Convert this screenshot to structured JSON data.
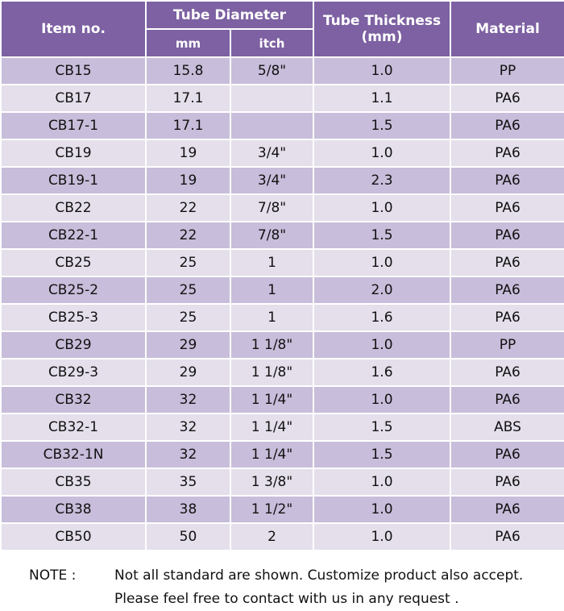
{
  "table": {
    "header": {
      "item": "Item no.",
      "diameter": "Tube Diameter",
      "mm": "mm",
      "inch": "itch",
      "thickness": [
        "Tube Thickness",
        "(mm)"
      ],
      "material": "Material"
    },
    "rows": [
      [
        "CB15",
        "15.8",
        "5/8\"",
        "1.0",
        "PP"
      ],
      [
        "CB17",
        "17.1",
        null,
        "1.1",
        "PA6"
      ],
      [
        "CB17-1",
        "17.1",
        null,
        "1.5",
        "PA6"
      ],
      [
        "CB19",
        "19",
        "3/4\"",
        "1.0",
        "PA6"
      ],
      [
        "CB19-1",
        "19",
        "3/4\"",
        "2.3",
        "PA6"
      ],
      [
        "CB22",
        "22",
        "7/8\"",
        "1.0",
        "PA6"
      ],
      [
        "CB22-1",
        "22",
        "7/8\"",
        "1.5",
        "PA6"
      ],
      [
        "CB25",
        "25",
        "1",
        "1.0",
        "PA6"
      ],
      [
        "CB25-2",
        "25",
        "1",
        "2.0",
        "PA6"
      ],
      [
        "CB25-3",
        "25",
        "1",
        "1.6",
        "PA6"
      ],
      [
        "CB29",
        "29",
        "1 1/8\"",
        "1.0",
        "PP"
      ],
      [
        "CB29-3",
        "29",
        "1 1/8\"",
        "1.6",
        "PA6"
      ],
      [
        "CB32",
        "32",
        "1 1/4\"",
        "1.0",
        "PA6"
      ],
      [
        "CB32-1",
        "32",
        "1 1/4\"",
        "1.5",
        "ABS"
      ],
      [
        "CB32-1N",
        "32",
        "1 1/4\"",
        "1.5",
        "PA6"
      ],
      [
        "CB35",
        "35",
        "1 3/8\"",
        "1.0",
        "PA6"
      ],
      [
        "CB38",
        "38",
        "1 1/2\"",
        "1.0",
        "PA6"
      ],
      [
        "CB50",
        "50",
        "2",
        "1.0",
        "PA6"
      ]
    ]
  },
  "note": {
    "label": "NOTE :",
    "lines": [
      "Not all standard are shown. Customize product also accept.",
      "Please feel free to contact with us in any request ."
    ]
  }
}
